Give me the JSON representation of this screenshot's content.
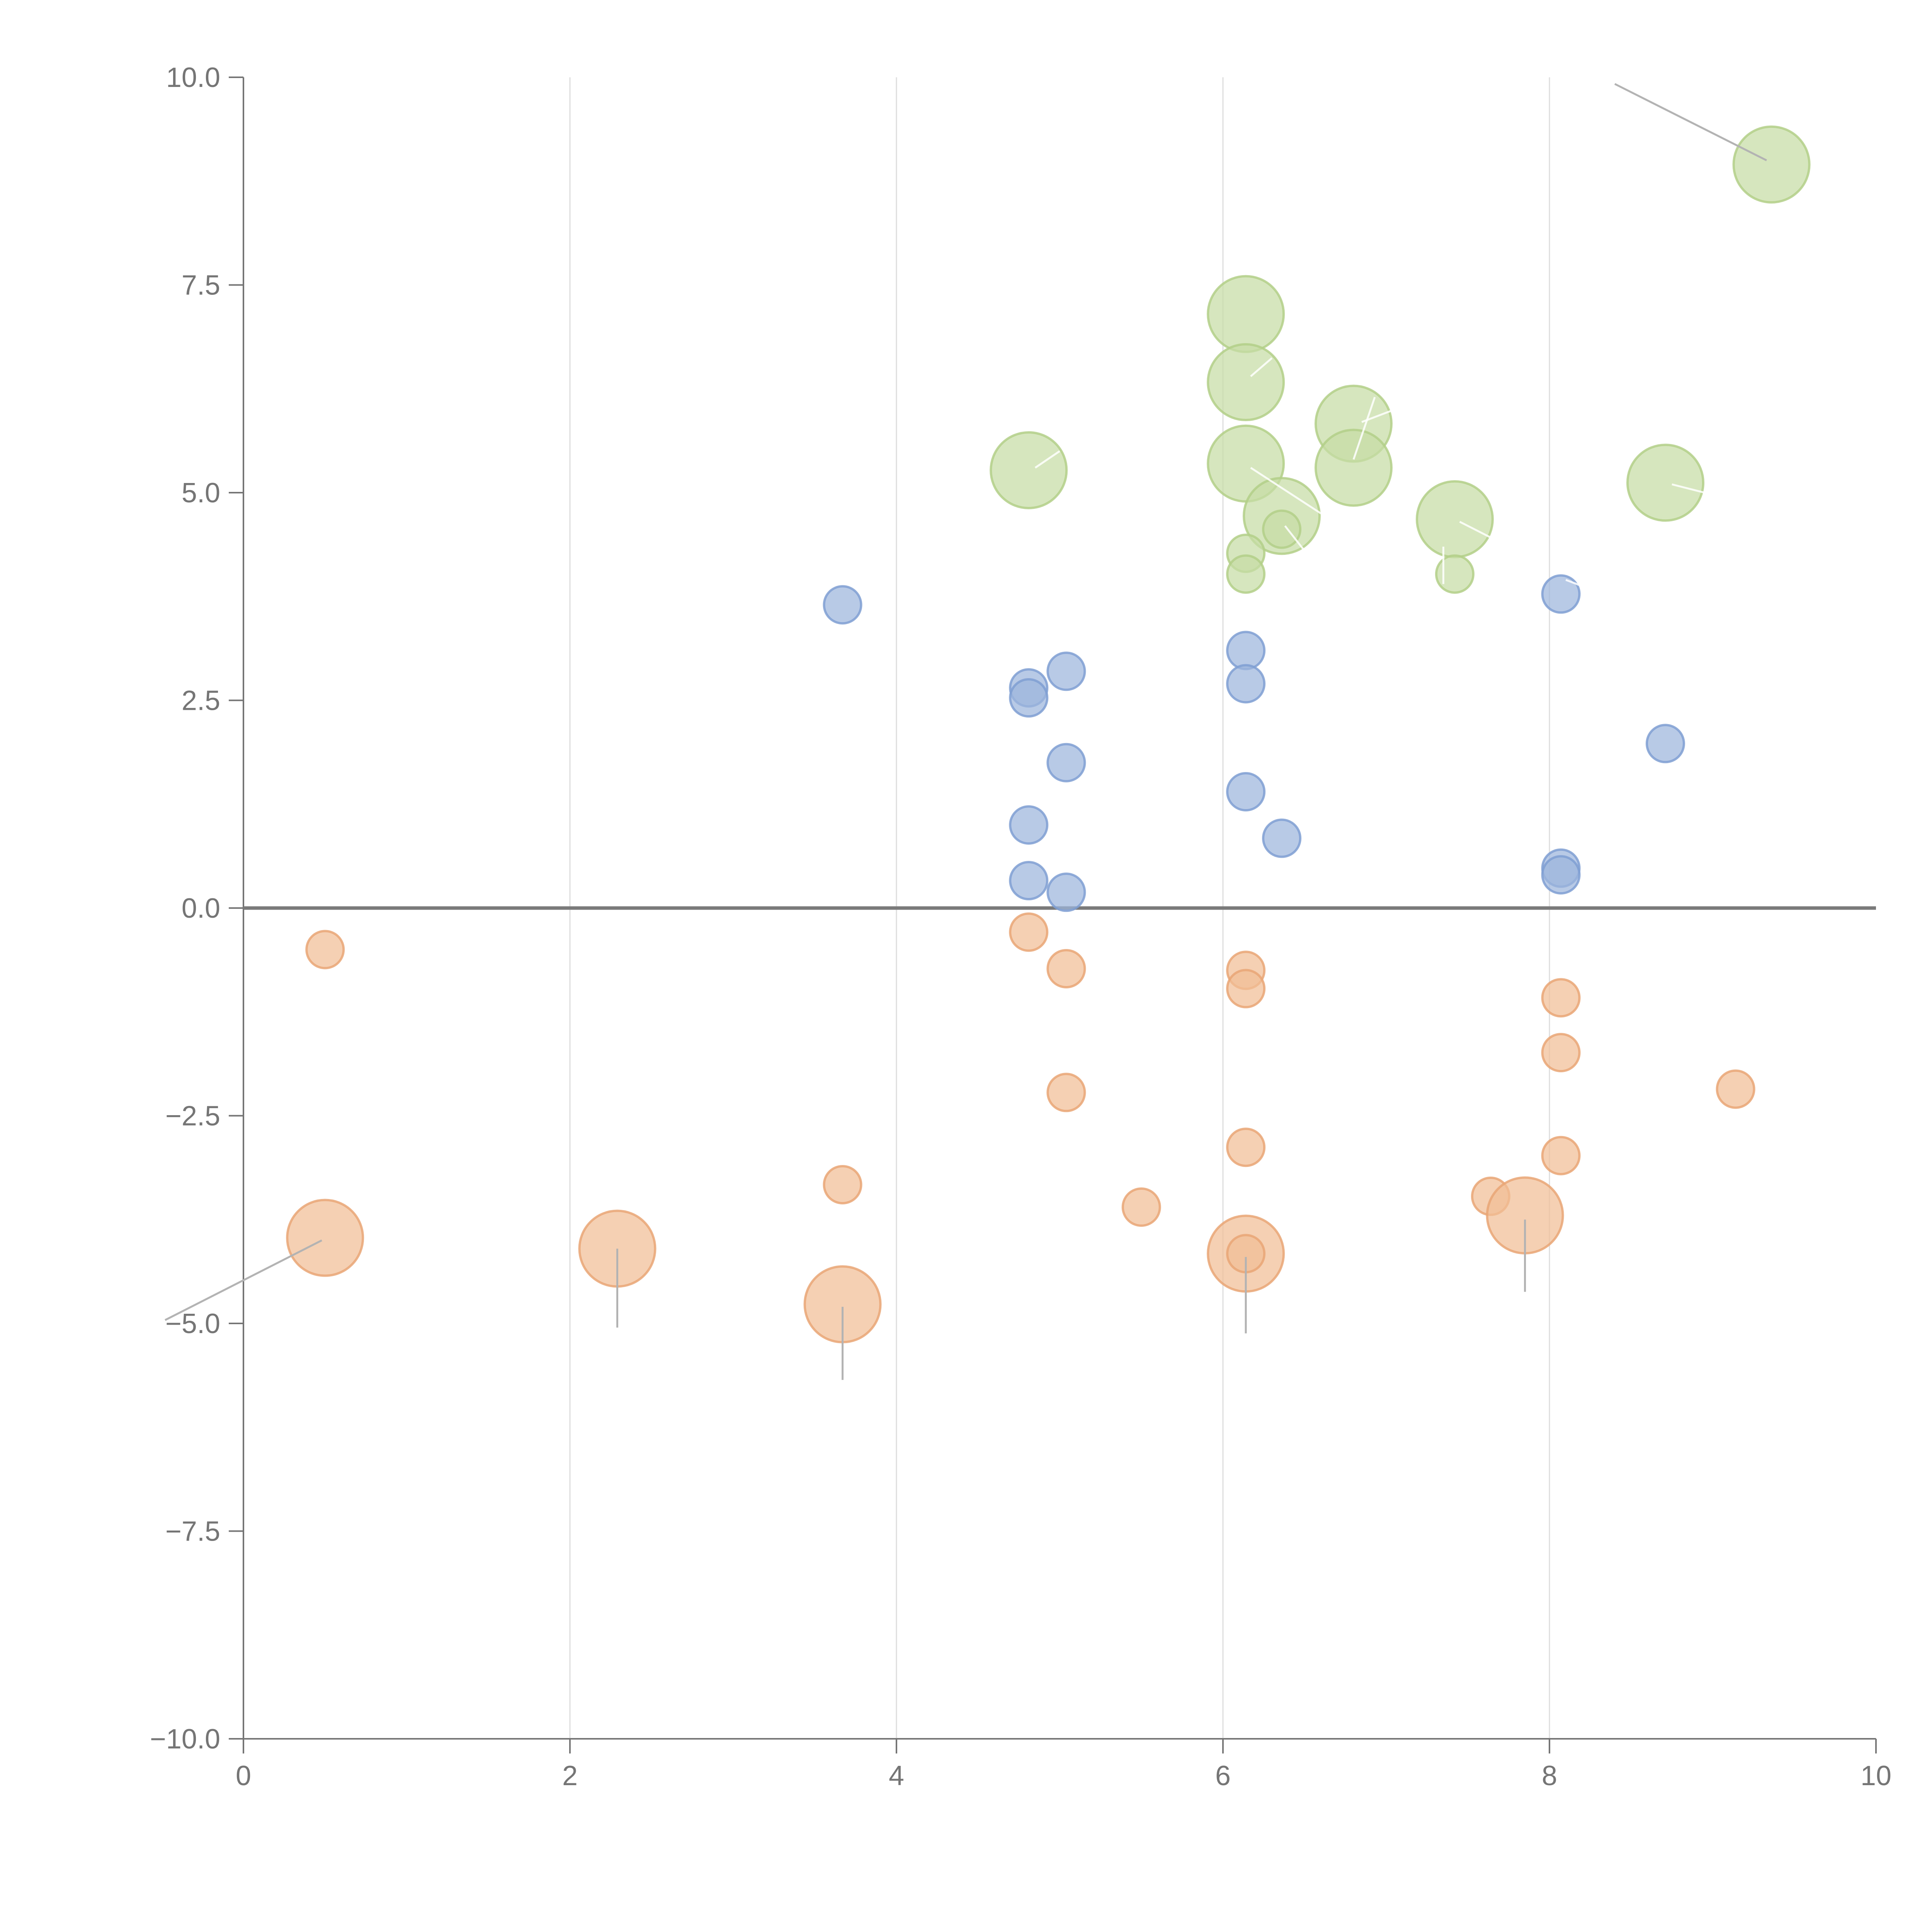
{
  "chart_data": {
    "type": "scatter",
    "title": "",
    "xlabel": "",
    "ylabel": "",
    "xlim": [
      0,
      10
    ],
    "ylim": [
      -10,
      10
    ],
    "grid": {
      "vertical": true,
      "horizontal": false
    },
    "zero_line": true,
    "x_ticks": [
      "0",
      "2",
      "4",
      "6",
      "8",
      "10"
    ],
    "x_tick_values": [
      0,
      2,
      4,
      6,
      8,
      10
    ],
    "y_ticks": [
      "10.0",
      "7.5",
      "5.0",
      "2.5",
      "0.0",
      "−2.5",
      "−5.0",
      "−7.5",
      "−10.0"
    ],
    "y_tick_values": [
      10,
      7.5,
      5,
      2.5,
      0,
      -2.5,
      -5,
      -7.5,
      -10
    ],
    "colors": {
      "blue": "#9db6dd",
      "green": "#c6dca5",
      "orange": "#f1be96"
    },
    "series": [
      {
        "name": "blue",
        "fill": "#9db6dd",
        "stroke": "#7f9fd2",
        "points": [
          {
            "x": 3.67,
            "y": 3.65,
            "size": 1
          },
          {
            "x": 4.81,
            "y": 2.65,
            "size": 1
          },
          {
            "x": 4.81,
            "y": 2.53,
            "size": 1
          },
          {
            "x": 5.04,
            "y": 2.85,
            "size": 1
          },
          {
            "x": 5.04,
            "y": 1.75,
            "size": 1
          },
          {
            "x": 4.81,
            "y": 1.0,
            "size": 1
          },
          {
            "x": 4.81,
            "y": 0.33,
            "size": 1
          },
          {
            "x": 5.04,
            "y": 0.19,
            "size": 1
          },
          {
            "x": 6.14,
            "y": 3.1,
            "size": 1
          },
          {
            "x": 6.14,
            "y": 2.7,
            "size": 1
          },
          {
            "x": 6.14,
            "y": 1.4,
            "size": 1
          },
          {
            "x": 6.36,
            "y": 0.84,
            "size": 1
          },
          {
            "x": 8.07,
            "y": 3.78,
            "size": 1
          },
          {
            "x": 8.71,
            "y": 1.98,
            "size": 1
          },
          {
            "x": 8.07,
            "y": 0.48,
            "size": 1
          },
          {
            "x": 8.07,
            "y": 0.4,
            "size": 1
          }
        ]
      },
      {
        "name": "green",
        "fill": "#c6dca5",
        "stroke": "#b3cf88",
        "points": [
          {
            "x": 9.36,
            "y": 8.95,
            "size": 2
          },
          {
            "x": 6.14,
            "y": 7.15,
            "size": 2
          },
          {
            "x": 6.14,
            "y": 6.33,
            "size": 2
          },
          {
            "x": 6.8,
            "y": 5.83,
            "size": 2
          },
          {
            "x": 4.81,
            "y": 5.27,
            "size": 2
          },
          {
            "x": 6.14,
            "y": 5.35,
            "size": 2
          },
          {
            "x": 6.8,
            "y": 5.3,
            "size": 2
          },
          {
            "x": 8.71,
            "y": 5.12,
            "size": 2
          },
          {
            "x": 6.36,
            "y": 4.72,
            "size": 2
          },
          {
            "x": 7.42,
            "y": 4.68,
            "size": 2
          },
          {
            "x": 6.36,
            "y": 4.56,
            "size": 1
          },
          {
            "x": 6.14,
            "y": 4.27,
            "size": 1
          },
          {
            "x": 6.14,
            "y": 4.02,
            "size": 1
          },
          {
            "x": 7.42,
            "y": 4.02,
            "size": 1
          }
        ]
      },
      {
        "name": "orange",
        "fill": "#f1be96",
        "stroke": "#e9a675",
        "points": [
          {
            "x": 0.5,
            "y": -0.5,
            "size": 1
          },
          {
            "x": 0.5,
            "y": -3.97,
            "size": 2
          },
          {
            "x": 2.29,
            "y": -4.1,
            "size": 2
          },
          {
            "x": 3.67,
            "y": -3.33,
            "size": 1
          },
          {
            "x": 3.67,
            "y": -4.77,
            "size": 2
          },
          {
            "x": 4.81,
            "y": -0.29,
            "size": 1
          },
          {
            "x": 5.04,
            "y": -0.73,
            "size": 1
          },
          {
            "x": 5.04,
            "y": -2.22,
            "size": 1
          },
          {
            "x": 5.5,
            "y": -3.6,
            "size": 1
          },
          {
            "x": 6.14,
            "y": -0.75,
            "size": 1
          },
          {
            "x": 6.14,
            "y": -0.97,
            "size": 1
          },
          {
            "x": 6.14,
            "y": -2.88,
            "size": 1
          },
          {
            "x": 6.14,
            "y": -4.16,
            "size": 2
          },
          {
            "x": 6.14,
            "y": -4.16,
            "size": 1
          },
          {
            "x": 7.64,
            "y": -3.47,
            "size": 1
          },
          {
            "x": 7.85,
            "y": -3.7,
            "size": 2
          },
          {
            "x": 8.07,
            "y": -1.08,
            "size": 1
          },
          {
            "x": 8.07,
            "y": -1.74,
            "size": 1
          },
          {
            "x": 8.07,
            "y": -2.98,
            "size": 1
          },
          {
            "x": 9.14,
            "y": -2.18,
            "size": 1
          }
        ]
      }
    ],
    "leader_lines": [
      {
        "x1": 9.33,
        "y1": 9.0,
        "x2": 8.4,
        "y2": 9.92,
        "style": "grey"
      },
      {
        "x1": 0.48,
        "y1": -4.0,
        "x2": -0.48,
        "y2": -4.96,
        "style": "grey"
      },
      {
        "x1": 2.29,
        "y1": -4.1,
        "x2": 2.29,
        "y2": -5.05,
        "style": "grey"
      },
      {
        "x1": 3.67,
        "y1": -4.8,
        "x2": 3.67,
        "y2": -5.68,
        "style": "grey"
      },
      {
        "x1": 6.14,
        "y1": -4.2,
        "x2": 6.14,
        "y2": -5.12,
        "style": "grey"
      },
      {
        "x1": 7.85,
        "y1": -3.75,
        "x2": 7.85,
        "y2": -4.62,
        "style": "grey"
      },
      {
        "x1": 4.85,
        "y1": 5.3,
        "x2": 5.0,
        "y2": 5.5,
        "style": "white"
      },
      {
        "x1": 6.17,
        "y1": 6.4,
        "x2": 6.3,
        "y2": 6.62,
        "style": "white"
      },
      {
        "x1": 6.17,
        "y1": 5.3,
        "x2": 6.6,
        "y2": 4.75,
        "style": "white"
      },
      {
        "x1": 6.8,
        "y1": 5.4,
        "x2": 6.93,
        "y2": 6.15,
        "style": "white"
      },
      {
        "x1": 6.85,
        "y1": 5.85,
        "x2": 7.05,
        "y2": 6.0,
        "style": "white"
      },
      {
        "x1": 6.38,
        "y1": 4.6,
        "x2": 6.5,
        "y2": 4.3,
        "style": "white"
      },
      {
        "x1": 7.45,
        "y1": 4.65,
        "x2": 7.65,
        "y2": 4.45,
        "style": "white"
      },
      {
        "x1": 8.75,
        "y1": 5.1,
        "x2": 8.95,
        "y2": 5.0,
        "style": "white"
      },
      {
        "x1": 8.1,
        "y1": 3.95,
        "x2": 8.3,
        "y2": 3.8,
        "style": "white"
      },
      {
        "x1": 7.35,
        "y1": 4.35,
        "x2": 7.35,
        "y2": 3.9,
        "style": "white"
      }
    ]
  }
}
